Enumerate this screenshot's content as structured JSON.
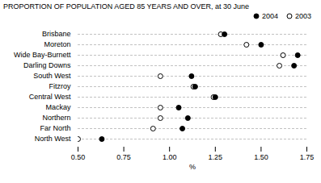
{
  "chart_data": {
    "type": "dot",
    "title": "PROPORTION OF POPULATION AGED 85 YEARS AND OVER, at 30 June",
    "xlabel": "%",
    "categories": [
      "Brisbane",
      "Moreton",
      "Wide Bay-Burnett",
      "Darling Downs",
      "South West",
      "Fitzroy",
      "Central West",
      "Mackay",
      "Northern",
      "Far North",
      "North West"
    ],
    "series": [
      {
        "name": "2004",
        "color": "#000000",
        "marker": "circle",
        "values": [
          1.3,
          1.5,
          1.7,
          1.68,
          1.12,
          1.14,
          1.25,
          1.05,
          1.1,
          1.07,
          0.63
        ]
      },
      {
        "name": "2003",
        "color": "#000000",
        "marker": "circle_open",
        "values": [
          1.28,
          1.42,
          1.62,
          1.6,
          0.95,
          1.13,
          1.24,
          0.95,
          0.95,
          0.91,
          0.5
        ]
      }
    ],
    "xlim": [
      0.5,
      1.75
    ],
    "xticks": [
      {
        "value": 0.5,
        "label": "0.50"
      },
      {
        "value": 0.75,
        "label": "0.75"
      },
      {
        "value": 1,
        "label": "1.00"
      },
      {
        "value": 1.25,
        "label": "1.25"
      },
      {
        "value": 1.5,
        "label": "1.50"
      },
      {
        "value": 1.75,
        "label": "1.75"
      }
    ],
    "grid": true,
    "legend": "top"
  }
}
